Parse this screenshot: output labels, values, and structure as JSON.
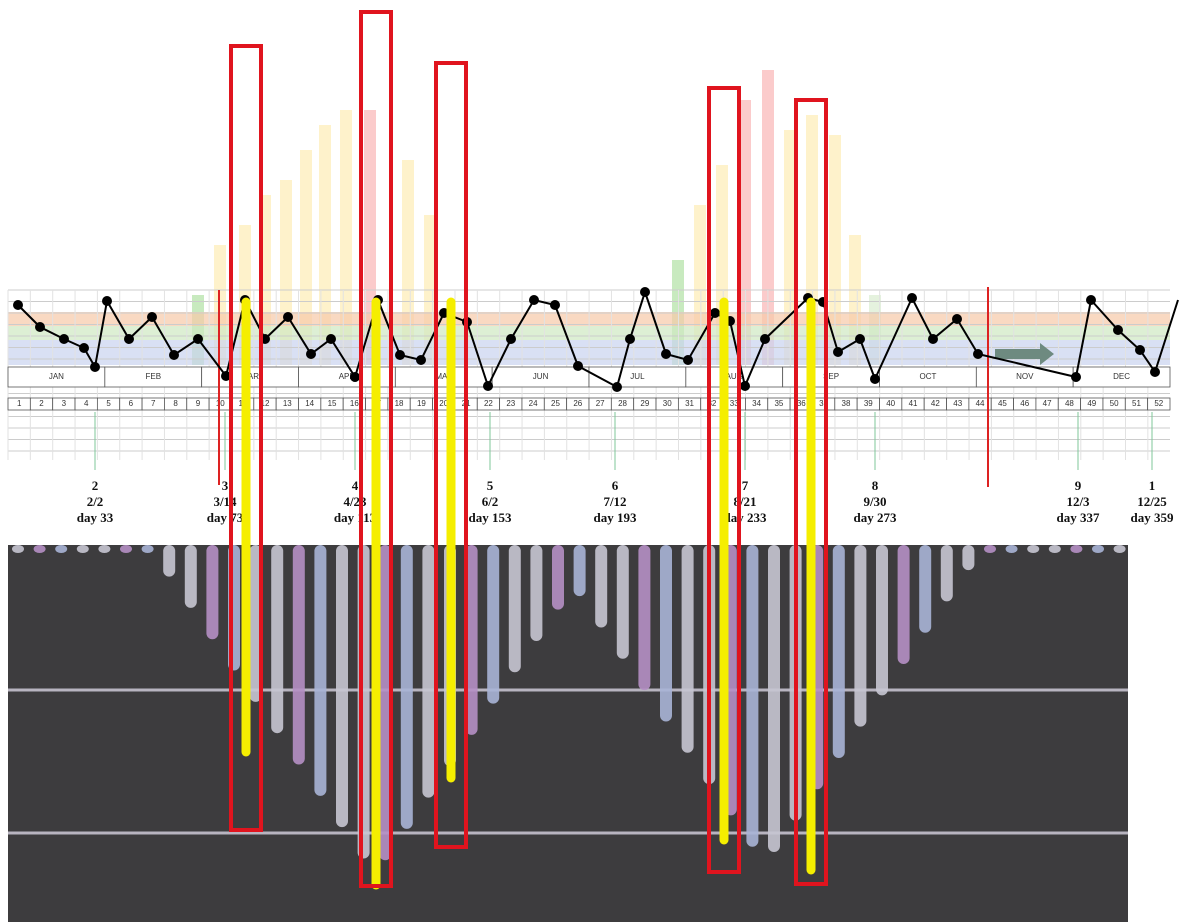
{
  "months": [
    "JAN",
    "FEB",
    "MAR",
    "APR",
    "MAY",
    "JUN",
    "JUL",
    "AUG",
    "SEP",
    "OCT",
    "NOV",
    "DEC"
  ],
  "weeks": [
    1,
    2,
    3,
    4,
    5,
    6,
    7,
    8,
    9,
    10,
    11,
    12,
    13,
    14,
    15,
    16,
    17,
    18,
    19,
    20,
    21,
    22,
    23,
    24,
    25,
    26,
    27,
    28,
    29,
    30,
    31,
    32,
    33,
    34,
    35,
    36,
    37,
    38,
    39,
    40,
    41,
    42,
    43,
    44,
    45,
    46,
    47,
    48,
    49,
    50,
    51,
    52
  ],
  "annotations": [
    {
      "number": "2",
      "date": "2/2",
      "day": "day 33"
    },
    {
      "number": "3",
      "date": "3/14",
      "day": "day 73"
    },
    {
      "number": "4",
      "date": "4/23",
      "day": "day 113"
    },
    {
      "number": "5",
      "date": "6/2",
      "day": "day 153"
    },
    {
      "number": "6",
      "date": "7/12",
      "day": "day 193"
    },
    {
      "number": "7",
      "date": "8/21",
      "day": "day 233"
    },
    {
      "number": "8",
      "date": "9/30",
      "day": "day 273"
    },
    {
      "number": "9",
      "date": "12/3",
      "day": "day 337"
    },
    {
      "number": "1",
      "date": "12/25",
      "day": "day 359"
    }
  ]
}
